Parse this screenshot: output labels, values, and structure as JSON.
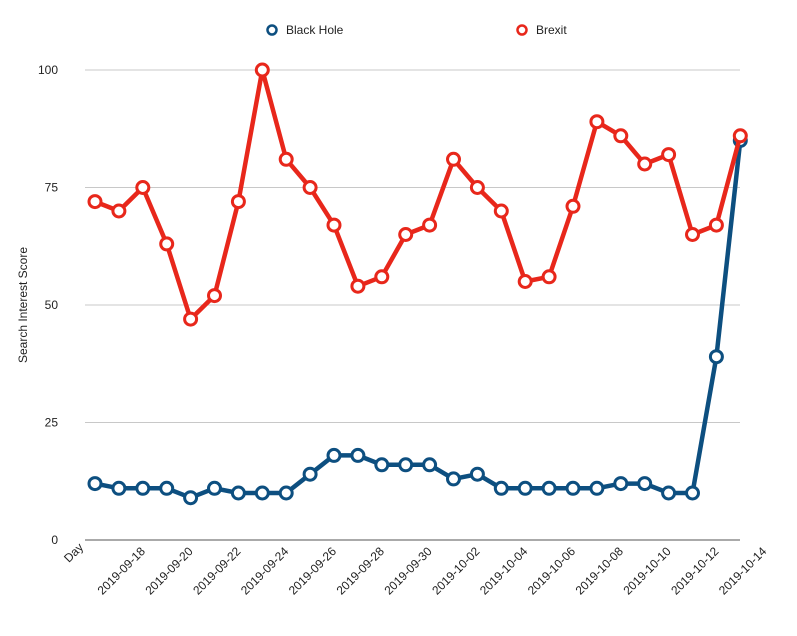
{
  "chart_data": {
    "type": "line",
    "xlabel": "Day",
    "ylabel": "Search Interest Score",
    "ylim": [
      0,
      100
    ],
    "yticks": [
      0,
      25,
      50,
      75,
      100
    ],
    "grid": true,
    "legend_position": "top",
    "x": [
      "2019-09-16",
      "2019-09-17",
      "2019-09-18",
      "2019-09-19",
      "2019-09-20",
      "2019-09-21",
      "2019-09-22",
      "2019-09-23",
      "2019-09-24",
      "2019-09-25",
      "2019-09-26",
      "2019-09-27",
      "2019-09-28",
      "2019-09-29",
      "2019-09-30",
      "2019-10-01",
      "2019-10-02",
      "2019-10-03",
      "2019-10-04",
      "2019-10-05",
      "2019-10-06",
      "2019-10-07",
      "2019-10-08",
      "2019-10-09",
      "2019-10-10",
      "2019-10-11",
      "2019-10-12",
      "2019-10-13",
      "2019-10-14"
    ],
    "xtick_labels": [
      "2019-09-18",
      "2019-09-20",
      "2019-09-22",
      "2019-09-24",
      "2019-09-26",
      "2019-09-28",
      "2019-09-30",
      "2019-10-02",
      "2019-10-04",
      "2019-10-06",
      "2019-10-08",
      "2019-10-10",
      "2019-10-12",
      "2019-10-14"
    ],
    "series": [
      {
        "name": "Black Hole",
        "color": "#0d4f80",
        "values": [
          12,
          11,
          11,
          11,
          9,
          11,
          10,
          10,
          10,
          14,
          18,
          18,
          16,
          16,
          16,
          13,
          14,
          11,
          11,
          11,
          11,
          11,
          12,
          12,
          10,
          10,
          39,
          85,
          null
        ]
      },
      {
        "name": "Brexit",
        "color": "#e8271b",
        "values": [
          72,
          70,
          75,
          63,
          47,
          52,
          72,
          100,
          81,
          75,
          67,
          54,
          56,
          65,
          67,
          81,
          75,
          70,
          55,
          56,
          71,
          89,
          86,
          80,
          82,
          65,
          67,
          86,
          null
        ]
      }
    ]
  }
}
